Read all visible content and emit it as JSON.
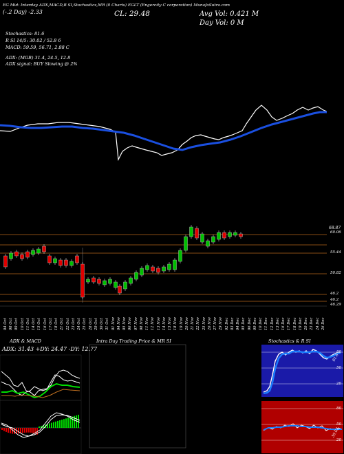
{
  "colors": {
    "background": "#000000",
    "ema_line": "#1a4fe0",
    "price_line": "#ffffff",
    "up_candle": "#00c000",
    "down_candle": "#e00000",
    "grid_orange": "#b5651d",
    "stoch_panel": "#1a1aa8",
    "rsi_panel": "#b00000",
    "macd_bar": "#00dd00"
  },
  "header": {
    "line1": "EG  Mid: Interday ADX,MACD,B     SI,Stochastics,MR     (0 Charts) EGLT     (Engercity C     corporation) MunafaSutra.com",
    "cl_label": "CL: 29.48",
    "day_change": "(-.2 Day) -2.33",
    "avg_vol": "Avg Vol: 0.421  M",
    "day_vol": "Day Vol: 0   M"
  },
  "info": {
    "stochastics": "Stochastics: 81.6",
    "rsi": "R                    SI 14/5: 30.02 / 52.8                6",
    "macd": "MACD: 59.59, 56.71, 2.88  C",
    "adx": "ADX:                                    (MGB) 31.4, 24.5, 12.8",
    "adx_signal": "ADX  signal:                          BUY Slowing @ 2%"
  },
  "price_levels": [
    {
      "label": "60.06"
    },
    {
      "label": "55.44"
    },
    {
      "label": "50.82"
    },
    {
      "label": "46.2"
    },
    {
      "label": "46.2"
    },
    {
      "label": "46.29"
    }
  ],
  "price_tag": "68.87",
  "dates": [
    "04 Oct",
    "08 Oct",
    "09 Oct",
    "10 Oct",
    "11 Oct",
    "14 Oct",
    "15 Oct",
    "16 Oct",
    "17 Oct",
    "18 Oct",
    "21 Oct",
    "22 Oct",
    "23 Oct",
    "24 Oct",
    "25 Oct",
    "28 Oct",
    "29 Oct",
    "30 Oct",
    "31 Oct",
    "01 Nov",
    "04 Nov",
    "05 Nov",
    "06 Nov",
    "07 Nov",
    "08 Nov",
    "11 Nov",
    "12 Nov",
    "13 Nov",
    "14 Nov",
    "15 Nov",
    "18 Nov",
    "19 Nov",
    "20 Nov",
    "21 Nov",
    "22 Nov",
    "25 Nov",
    "26 Nov",
    "27 Nov",
    "29 Nov",
    "02 Dec",
    "03 Dec",
    "04 Dec",
    "05 Dec",
    "06 Dec",
    "09 Dec",
    "10 Dec",
    "11 Dec",
    "12 Dec",
    "13 Dec",
    "16 Dec",
    "17 Dec",
    "18 Dec",
    "19 Dec",
    "20 Dec",
    "23 Dec",
    "24 Dec",
    "26 Dec"
  ],
  "panels": {
    "adx_title": "ADX  & MACD",
    "adx_values": "ADX: 31.43  +DY: 24.47  -DY: 12.77",
    "intraday_title": "Intra  Day Trading Price  & MR                  SI",
    "stoch_title": "Stochastics & R                   SI",
    "stoch_labels": [
      "80",
      "50",
      "20"
    ],
    "rsi_labels": [
      "80",
      "50",
      "20"
    ],
    "stoch_value": "81.6",
    "rsi_value": "30.02"
  }
}
